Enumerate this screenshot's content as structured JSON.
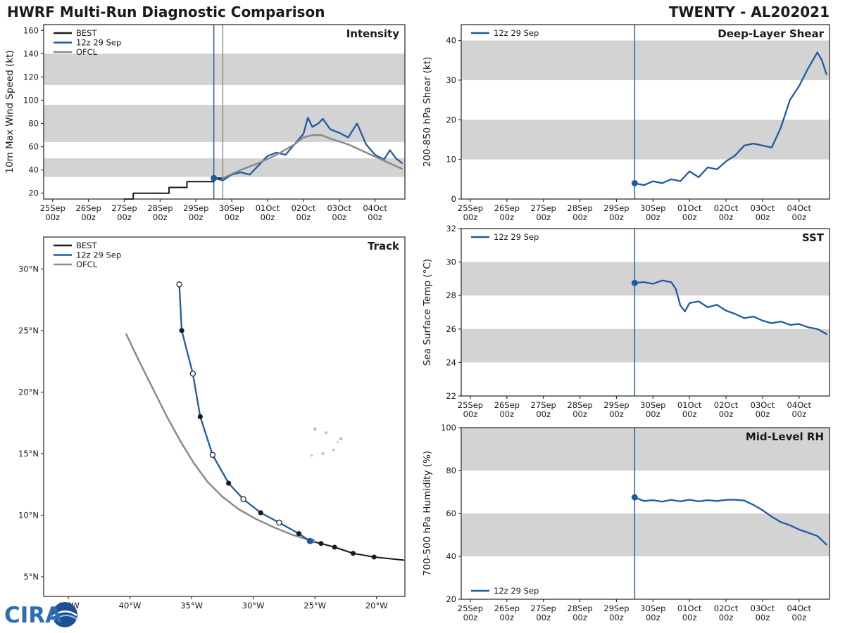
{
  "header": {
    "left_title": "HWRF Multi-Run Diagnostic Comparison",
    "right_title": "TWENTY - AL202021"
  },
  "logo": {
    "text": "CIRA"
  },
  "colors": {
    "model": "#1f5aa5",
    "best": "#1a1a1a",
    "ofcl": "#8a8a8a",
    "dark": "#1b1b1b",
    "band": "#d3d3d3",
    "frame": "#333333",
    "text": "#1a1a1a",
    "land": "#bdbdbd",
    "logo": "#2e6db4"
  },
  "marker_styles": {
    "init": {
      "r": 4.5,
      "fill": "model"
    },
    "best": {
      "r": 3.5,
      "fill": "best"
    },
    "filled": {
      "r": 3.6,
      "fill": "dark"
    },
    "open": {
      "r": 3.6,
      "fill": "white",
      "stroke": "dark",
      "sw": 1.2
    },
    "ofcl": {
      "r": 3.5,
      "fill": "ofcl"
    }
  },
  "chart_data": [
    {
      "id": "intensity",
      "type": "line",
      "title": "Intensity",
      "ylabel": "10m Max Wind Speed (kt)",
      "x_unit": "hours since 25 Sep 00z",
      "xlim": [
        -6,
        236
      ],
      "ylim": [
        15,
        165
      ],
      "yticks": [
        20,
        40,
        60,
        80,
        100,
        120,
        140,
        160
      ],
      "bands": [
        [
          34,
          50
        ],
        [
          64,
          96
        ],
        [
          113,
          140
        ]
      ],
      "xticks": [
        0,
        24,
        48,
        72,
        96,
        120,
        144,
        168,
        192,
        216
      ],
      "xtick_labels": [
        [
          "25Sep",
          "00z"
        ],
        [
          "26Sep",
          "00z"
        ],
        [
          "27Sep",
          "00z"
        ],
        [
          "28Sep",
          "00z"
        ],
        [
          "29Sep",
          "00z"
        ],
        [
          "30Sep",
          "00z"
        ],
        [
          "01Oct",
          "00z"
        ],
        [
          "02Oct",
          "00z"
        ],
        [
          "03Oct",
          "00z"
        ],
        [
          "04Oct",
          "00z"
        ]
      ],
      "vlines": [
        {
          "x": 108,
          "color_key": "model"
        },
        {
          "x": 114,
          "color_key": "ofcl"
        }
      ],
      "series": [
        {
          "name": "BEST",
          "color_key": "best",
          "step": true,
          "lw": 2.0,
          "x": [
            48,
            54,
            78,
            90,
            108,
            116
          ],
          "y": [
            15,
            20,
            25,
            30,
            33,
            33
          ],
          "markers": []
        },
        {
          "name": "12z 29 Sep",
          "color_key": "model",
          "lw": 2.3,
          "x": [
            108,
            114,
            120,
            126,
            132,
            138,
            144,
            150,
            156,
            162,
            168,
            171,
            174,
            178,
            181,
            186,
            192,
            198,
            204,
            210,
            216,
            222,
            226,
            230,
            234
          ],
          "y": [
            33,
            31,
            36,
            38,
            36,
            44,
            52,
            55,
            53,
            62,
            71,
            85,
            77,
            80,
            84,
            75,
            72,
            68,
            80,
            62,
            53,
            49,
            57,
            50,
            46
          ],
          "markers": [
            {
              "i": 0,
              "style": "init"
            }
          ]
        },
        {
          "name": "OFCL",
          "color_key": "ofcl",
          "lw": 2.5,
          "x": [
            114,
            126,
            138,
            150,
            162,
            168,
            174,
            180,
            186,
            198,
            210,
            222,
            234
          ],
          "y": [
            33,
            40,
            46,
            53,
            62,
            68,
            70,
            70,
            67,
            62,
            55,
            48,
            41
          ],
          "markers": []
        }
      ],
      "legend": {
        "pos": "tl",
        "items": [
          {
            "label": "BEST",
            "color_key": "best"
          },
          {
            "label": "12z 29 Sep",
            "color_key": "model"
          },
          {
            "label": "OFCL",
            "color_key": "ofcl"
          }
        ]
      }
    },
    {
      "id": "shear",
      "type": "line",
      "title": "Deep-Layer Shear",
      "ylabel": "200-850 hPa Shear (kt)",
      "x_unit": "hours since 25 Sep 00z",
      "xlim": [
        -6,
        236
      ],
      "ylim": [
        0,
        44
      ],
      "yticks": [
        0,
        10,
        20,
        30,
        40
      ],
      "bands": [
        [
          10,
          20
        ],
        [
          30,
          40
        ]
      ],
      "xticks": [
        0,
        24,
        48,
        72,
        96,
        120,
        144,
        168,
        192,
        216
      ],
      "xtick_labels": [
        [
          "25Sep",
          "00z"
        ],
        [
          "26Sep",
          "00z"
        ],
        [
          "27Sep",
          "00z"
        ],
        [
          "28Sep",
          "00z"
        ],
        [
          "29Sep",
          "00z"
        ],
        [
          "30Sep",
          "00z"
        ],
        [
          "01Oct",
          "00z"
        ],
        [
          "02Oct",
          "00z"
        ],
        [
          "03Oct",
          "00z"
        ],
        [
          "04Oct",
          "00z"
        ]
      ],
      "vlines": [
        {
          "x": 108,
          "color_key": "model"
        }
      ],
      "series": [
        {
          "name": "12z 29 Sep",
          "color_key": "model",
          "lw": 2.3,
          "x": [
            108,
            114,
            120,
            126,
            132,
            138,
            144,
            150,
            156,
            162,
            168,
            174,
            180,
            186,
            192,
            198,
            204,
            210,
            216,
            222,
            228,
            231,
            234
          ],
          "y": [
            4,
            3.5,
            4.5,
            4,
            5,
            4.5,
            7,
            5.5,
            8,
            7.5,
            9.5,
            11,
            13.5,
            14,
            13.5,
            13,
            18,
            25,
            28.5,
            33,
            37,
            35,
            31.5
          ],
          "markers": [
            {
              "i": 0,
              "style": "init"
            }
          ]
        }
      ],
      "legend": {
        "pos": "tl",
        "items": [
          {
            "label": "12z 29 Sep",
            "color_key": "model"
          }
        ]
      }
    },
    {
      "id": "sst",
      "type": "line",
      "title": "SST",
      "ylabel": "Sea Surface Temp (°C)",
      "x_unit": "hours since 25 Sep 00z",
      "xlim": [
        -6,
        236
      ],
      "ylim": [
        22,
        32
      ],
      "yticks": [
        22,
        24,
        26,
        28,
        30,
        32
      ],
      "bands": [
        [
          24,
          26
        ],
        [
          28,
          30
        ]
      ],
      "xticks": [
        0,
        24,
        48,
        72,
        96,
        120,
        144,
        168,
        192,
        216
      ],
      "xtick_labels": [
        [
          "25Sep",
          "00z"
        ],
        [
          "26Sep",
          "00z"
        ],
        [
          "27Sep",
          "00z"
        ],
        [
          "28Sep",
          "00z"
        ],
        [
          "29Sep",
          "00z"
        ],
        [
          "30Sep",
          "00z"
        ],
        [
          "01Oct",
          "00z"
        ],
        [
          "02Oct",
          "00z"
        ],
        [
          "03Oct",
          "00z"
        ],
        [
          "04Oct",
          "00z"
        ]
      ],
      "vlines": [
        {
          "x": 108,
          "color_key": "model"
        }
      ],
      "series": [
        {
          "name": "12z 29 Sep",
          "color_key": "model",
          "lw": 2.3,
          "x": [
            108,
            114,
            120,
            126,
            132,
            135,
            138,
            141,
            144,
            150,
            156,
            162,
            168,
            174,
            180,
            186,
            192,
            198,
            204,
            210,
            216,
            222,
            228,
            234
          ],
          "y": [
            28.75,
            28.8,
            28.7,
            28.9,
            28.8,
            28.4,
            27.4,
            27.05,
            27.55,
            27.65,
            27.3,
            27.45,
            27.1,
            26.9,
            26.65,
            26.75,
            26.5,
            26.35,
            26.45,
            26.25,
            26.3,
            26.1,
            26.0,
            25.7
          ],
          "markers": [
            {
              "i": 0,
              "style": "init"
            }
          ]
        }
      ],
      "legend": {
        "pos": "tl",
        "items": [
          {
            "label": "12z 29 Sep",
            "color_key": "model"
          }
        ]
      }
    },
    {
      "id": "rh",
      "type": "line",
      "title": "Mid-Level RH",
      "ylabel": "700-500 hPa Humidity (%)",
      "x_unit": "hours since 25 Sep 00z",
      "xlim": [
        -6,
        236
      ],
      "ylim": [
        20,
        100
      ],
      "yticks": [
        20,
        40,
        60,
        80,
        100
      ],
      "bands": [
        [
          40,
          60
        ],
        [
          80,
          100
        ]
      ],
      "xticks": [
        0,
        24,
        48,
        72,
        96,
        120,
        144,
        168,
        192,
        216
      ],
      "xtick_labels": [
        [
          "25Sep",
          "00z"
        ],
        [
          "26Sep",
          "00z"
        ],
        [
          "27Sep",
          "00z"
        ],
        [
          "28Sep",
          "00z"
        ],
        [
          "29Sep",
          "00z"
        ],
        [
          "30Sep",
          "00z"
        ],
        [
          "01Oct",
          "00z"
        ],
        [
          "02Oct",
          "00z"
        ],
        [
          "03Oct",
          "00z"
        ],
        [
          "04Oct",
          "00z"
        ]
      ],
      "vlines": [
        {
          "x": 108,
          "color_key": "model"
        }
      ],
      "series": [
        {
          "name": "12z 29 Sep",
          "color_key": "model",
          "lw": 2.3,
          "x": [
            108,
            114,
            120,
            126,
            132,
            138,
            144,
            150,
            156,
            162,
            168,
            174,
            180,
            186,
            192,
            198,
            204,
            210,
            216,
            222,
            228,
            231,
            234
          ],
          "y": [
            67.5,
            65.8,
            66.2,
            65.5,
            66.3,
            65.6,
            66.4,
            65.6,
            66.2,
            65.8,
            66.3,
            66.4,
            66,
            64,
            61.5,
            58.5,
            56,
            54.5,
            52.5,
            51,
            49.5,
            47.5,
            45.5
          ],
          "markers": [
            {
              "i": 0,
              "style": "init"
            }
          ]
        }
      ],
      "legend": {
        "pos": "bl",
        "items": [
          {
            "label": "12z 29 Sep",
            "color_key": "model"
          }
        ]
      }
    },
    {
      "id": "track",
      "type": "track-map",
      "title": "Track",
      "ylabel": "",
      "x_unit": "degrees longitude",
      "xlim": [
        -47,
        -17.7
      ],
      "ylim": [
        3.4,
        32.6
      ],
      "xticks": [
        -45,
        -40,
        -35,
        -30,
        -25,
        -20
      ],
      "xtick_labels": [
        "45°W",
        "40°W",
        "35°W",
        "30°W",
        "25°W",
        "20°W"
      ],
      "yticks": [
        5,
        10,
        15,
        20,
        25,
        30
      ],
      "ytick_labels": [
        "5°N",
        "10°N",
        "15°N",
        "20°N",
        "25°N",
        "30°N"
      ],
      "islands": [
        [
          -25.0,
          17.0,
          2.4
        ],
        [
          -24.1,
          16.7,
          2.0
        ],
        [
          -22.9,
          16.2,
          2.2
        ],
        [
          -23.5,
          15.3,
          1.8
        ],
        [
          -24.35,
          15.0,
          2.0
        ],
        [
          -25.25,
          14.85,
          1.6
        ],
        [
          -23.15,
          15.95,
          1.5
        ]
      ],
      "series": [
        {
          "name": "BEST",
          "color_key": "best",
          "lw": 2.0,
          "x": [
            -17.8,
            -20.2,
            -21.9,
            -23.4,
            -24.5,
            -25.4
          ],
          "y": [
            6.35,
            6.6,
            6.9,
            7.4,
            7.7,
            7.9
          ],
          "markers": [
            {
              "i": 1,
              "style": "best"
            },
            {
              "i": 2,
              "style": "best"
            },
            {
              "i": 3,
              "style": "best"
            },
            {
              "i": 4,
              "style": "best"
            }
          ]
        },
        {
          "name": "OFCL",
          "color_key": "ofcl",
          "lw": 2.5,
          "x": [
            -25.2,
            -26.8,
            -28.3,
            -29.8,
            -31.2,
            -32.5,
            -33.7,
            -34.8,
            -35.9,
            -37.0,
            -38.1,
            -39.2,
            -40.3
          ],
          "y": [
            7.9,
            8.4,
            9.0,
            9.7,
            10.5,
            11.5,
            12.7,
            14.2,
            16.0,
            18.0,
            20.2,
            22.4,
            24.7
          ],
          "markers": [
            {
              "i": 0,
              "style": "ofcl"
            }
          ]
        },
        {
          "name": "12z 29 Sep",
          "color_key": "model",
          "lw": 2.3,
          "x": [
            -25.4,
            -26.3,
            -27.9,
            -29.4,
            -30.8,
            -32.0,
            -33.3,
            -34.3,
            -34.9,
            -35.8,
            -36.0
          ],
          "y": [
            7.9,
            8.5,
            9.4,
            10.2,
            11.3,
            12.6,
            14.9,
            18.0,
            21.5,
            25.0,
            28.75
          ],
          "markers": [
            {
              "i": 0,
              "style": "init"
            },
            {
              "i": 1,
              "style": "filled"
            },
            {
              "i": 2,
              "style": "open"
            },
            {
              "i": 3,
              "style": "filled"
            },
            {
              "i": 4,
              "style": "open"
            },
            {
              "i": 5,
              "style": "filled"
            },
            {
              "i": 6,
              "style": "open"
            },
            {
              "i": 7,
              "style": "filled"
            },
            {
              "i": 8,
              "style": "open"
            },
            {
              "i": 9,
              "style": "filled"
            },
            {
              "i": 10,
              "style": "open"
            }
          ]
        }
      ],
      "legend": {
        "pos": "tl",
        "items": [
          {
            "label": "BEST",
            "color_key": "best"
          },
          {
            "label": "12z 29 Sep",
            "color_key": "model"
          },
          {
            "label": "OFCL",
            "color_key": "ofcl"
          }
        ]
      }
    }
  ]
}
